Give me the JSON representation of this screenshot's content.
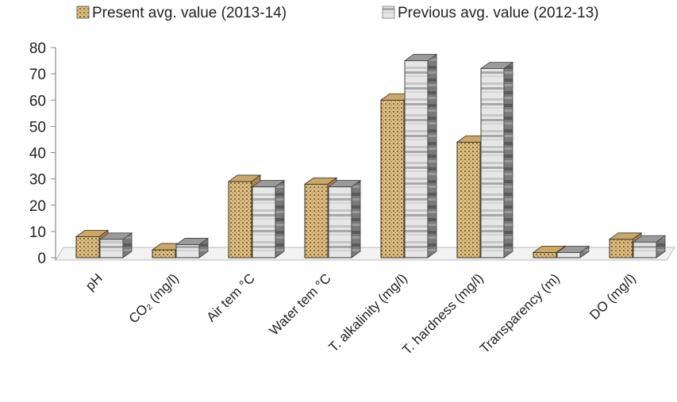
{
  "chart_data": {
    "type": "bar",
    "categories": [
      "pH",
      "CO₂ (mg/l)",
      "Air tem °C",
      "Water tem °C",
      "T. alkalinity (mg/l)",
      "T. hardness (mg/l)",
      "Transparency (m)",
      "DO (mg/l)"
    ],
    "series": [
      {
        "name": "Present avg. value (2013-14)",
        "values": [
          8,
          3,
          29,
          28,
          60,
          44,
          2,
          7
        ]
      },
      {
        "name": "Previous avg. value (2012-13)",
        "values": [
          7,
          5,
          27,
          27,
          75,
          72,
          2,
          6
        ]
      }
    ],
    "ylim": [
      0,
      80
    ],
    "yticks": [
      0,
      10,
      20,
      30,
      40,
      50,
      60,
      70,
      80
    ],
    "legend_position": "top",
    "style": "3d-column",
    "colors": {
      "present_fill": "#dcc08a",
      "present_dot": "#8a6420",
      "previous_light": "#e8e8e8",
      "previous_dark": "#5a5a5a"
    }
  }
}
